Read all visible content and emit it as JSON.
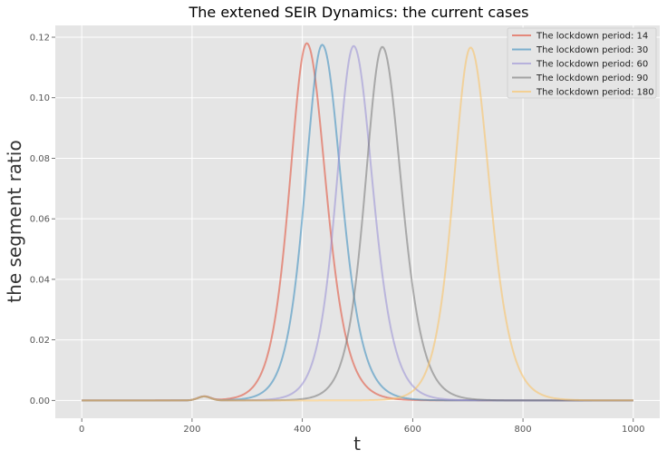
{
  "chart_data": {
    "type": "line",
    "title": "The extened SEIR Dynamics: the current cases",
    "xlabel": "t",
    "ylabel": "the segment ratio",
    "xlim": [
      -48,
      1048
    ],
    "ylim": [
      -0.0059,
      0.1239
    ],
    "xticks": [
      0,
      200,
      400,
      600,
      800,
      1000
    ],
    "yticks": [
      0.0,
      0.02,
      0.04,
      0.06,
      0.08,
      0.1,
      0.12
    ],
    "ytick_format_decimals": 2,
    "grid": true,
    "legend_placement": "top-right",
    "series": [
      {
        "name": "The lockdown period: 14",
        "color": "#E24A33",
        "peak_t": 408,
        "peak_value": 0.118,
        "width_left": 42,
        "width_right": 47
      },
      {
        "name": "The lockdown period: 30",
        "color": "#348ABD",
        "peak_t": 436,
        "peak_value": 0.1175,
        "width_left": 42,
        "width_right": 47
      },
      {
        "name": "The lockdown period: 60",
        "color": "#988ED5",
        "peak_t": 493,
        "peak_value": 0.1171,
        "width_left": 42,
        "width_right": 47
      },
      {
        "name": "The lockdown period: 90",
        "color": "#777777",
        "peak_t": 545,
        "peak_value": 0.1168,
        "width_left": 42,
        "width_right": 47
      },
      {
        "name": "The lockdown period: 180",
        "color": "#FBC15E",
        "peak_t": 705,
        "peak_value": 0.1166,
        "width_left": 42,
        "width_right": 47
      }
    ],
    "pre_lockdown_bump": {
      "t": 222,
      "value": 0.0013
    }
  }
}
